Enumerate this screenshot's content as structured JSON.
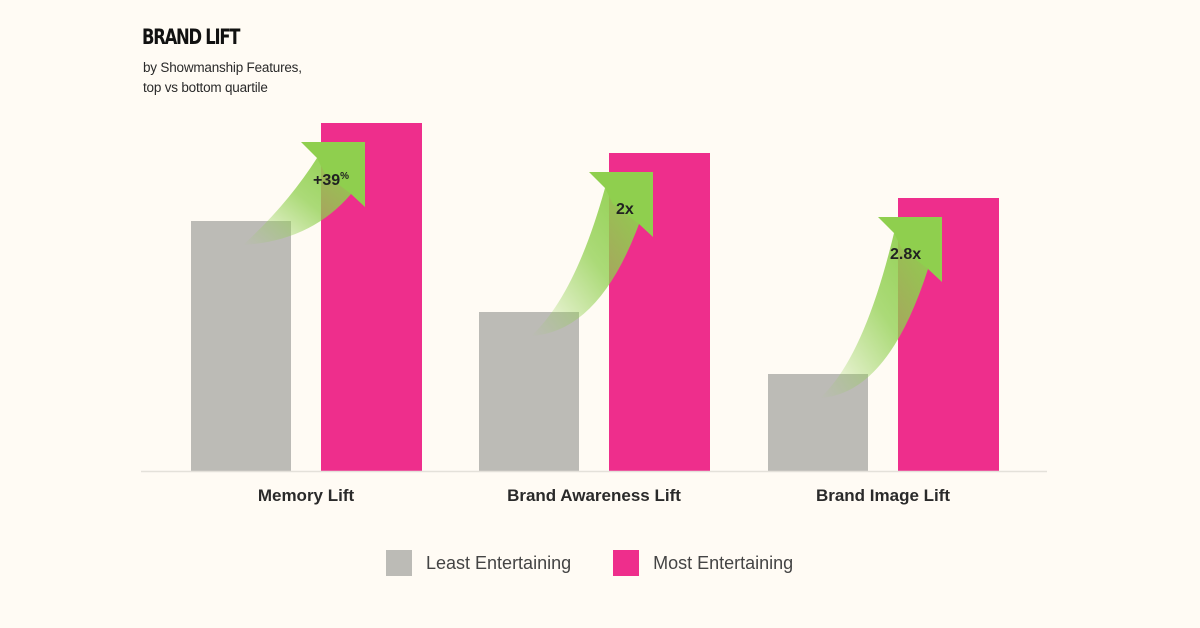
{
  "header": {
    "title": "BRAND LIFT",
    "subtitle_line1": "by Showmanship Features,",
    "subtitle_line2": "top vs bottom quartile"
  },
  "colors": {
    "background": "#FFFBF4",
    "least": "#BCBBB6",
    "most": "#EE2E8C",
    "arrow": "#8FCF4E",
    "baseline": "#E4E1DA"
  },
  "legend": [
    {
      "label": "Least Entertaining",
      "color": "#BCBBB6"
    },
    {
      "label": "Most Entertaining",
      "color": "#EE2E8C"
    }
  ],
  "annotations": [
    {
      "label": "+39",
      "suffix": "%"
    },
    {
      "label": "2x",
      "suffix": ""
    },
    {
      "label": "2.8x",
      "suffix": ""
    }
  ],
  "chart_data": {
    "type": "bar",
    "title": "BRAND LIFT",
    "subtitle": "by Showmanship Features, top vs bottom quartile",
    "categories": [
      "Memory Lift",
      "Brand Awareness Lift",
      "Brand Image Lift"
    ],
    "series": [
      {
        "name": "Least Entertaining",
        "color": "#BCBBB6",
        "values": [
          250,
          159,
          97
        ]
      },
      {
        "name": "Most Entertaining",
        "color": "#EE2E8C",
        "values": [
          348,
          318,
          273
        ]
      }
    ],
    "annotations": [
      "+39%",
      "2x",
      "2.8x"
    ],
    "xlabel": "",
    "ylabel": "",
    "yaxis_visible": false,
    "grid": false,
    "legend_position": "bottom"
  }
}
